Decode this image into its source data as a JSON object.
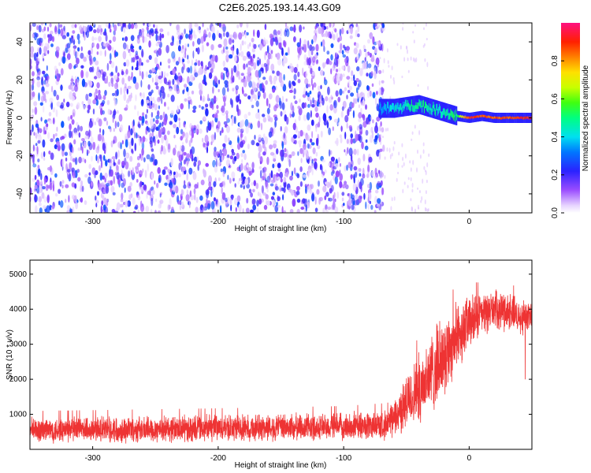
{
  "title": "C2E6.2025.193.14.43.G09",
  "chart_data": [
    {
      "type": "heatmap",
      "xlabel": "Height of straight line (km)",
      "ylabel": "Frequency (Hz)",
      "xlim": [
        -350,
        50
      ],
      "ylim": [
        -50,
        50
      ],
      "xticks": [
        -300,
        -200,
        -100,
        0
      ],
      "yticks": [
        -40,
        -20,
        0,
        20,
        40
      ],
      "colorbar": {
        "label": "Normalized spectral amplitude",
        "range": [
          0,
          1
        ],
        "ticks": [
          "0.0",
          "0.2",
          "0.4",
          "0.6",
          "0.8"
        ],
        "colormap": "rainbow: white-purple-blue-cyan-green-yellow-orange-red-magenta"
      },
      "noise_region_x": [
        -350,
        -72
      ],
      "signal_track": [
        {
          "x": -72,
          "freq": 5,
          "amp": 0.35
        },
        {
          "x": -60,
          "freq": 5,
          "amp": 0.4
        },
        {
          "x": -50,
          "freq": 6,
          "amp": 0.45
        },
        {
          "x": -40,
          "freq": 7,
          "amp": 0.5
        },
        {
          "x": -30,
          "freq": 5,
          "amp": 0.45
        },
        {
          "x": -20,
          "freq": 3,
          "amp": 0.45
        },
        {
          "x": -10,
          "freq": 1,
          "amp": 0.55
        },
        {
          "x": 0,
          "freq": 0,
          "amp": 0.9
        },
        {
          "x": 10,
          "freq": 1,
          "amp": 0.85
        },
        {
          "x": 20,
          "freq": 0,
          "amp": 0.85
        },
        {
          "x": 30,
          "freq": 0,
          "amp": 0.85
        },
        {
          "x": 40,
          "freq": 0,
          "amp": 0.9
        },
        {
          "x": 50,
          "freq": 0,
          "amp": 0.9
        }
      ]
    },
    {
      "type": "line",
      "xlabel": "Height of straight line (km)",
      "ylabel": "SNR (10 * v/v)",
      "xlim": [
        -350,
        50
      ],
      "ylim": [
        0,
        5400
      ],
      "xticks": [
        -300,
        -200,
        -100,
        0
      ],
      "yticks": [
        1000,
        2000,
        3000,
        4000,
        5000
      ],
      "color": "#ee3333",
      "envelope": [
        {
          "x": -350,
          "mean": 550,
          "spread": 420
        },
        {
          "x": -300,
          "mean": 560,
          "spread": 430
        },
        {
          "x": -200,
          "mean": 600,
          "spread": 440
        },
        {
          "x": -100,
          "mean": 650,
          "spread": 450
        },
        {
          "x": -65,
          "mean": 700,
          "spread": 480
        },
        {
          "x": -55,
          "mean": 1100,
          "spread": 750
        },
        {
          "x": -40,
          "mean": 1750,
          "spread": 1150
        },
        {
          "x": -30,
          "mean": 2150,
          "spread": 1350
        },
        {
          "x": -20,
          "mean": 2700,
          "spread": 1300
        },
        {
          "x": -10,
          "mean": 3200,
          "spread": 1100
        },
        {
          "x": 0,
          "mean": 3600,
          "spread": 900
        },
        {
          "x": 10,
          "mean": 3850,
          "spread": 700
        },
        {
          "x": 20,
          "mean": 4000,
          "spread": 600
        },
        {
          "x": 30,
          "mean": 3950,
          "spread": 650
        },
        {
          "x": 40,
          "mean": 3800,
          "spread": 600
        },
        {
          "x": 50,
          "mean": 3850,
          "spread": 500
        }
      ]
    }
  ]
}
